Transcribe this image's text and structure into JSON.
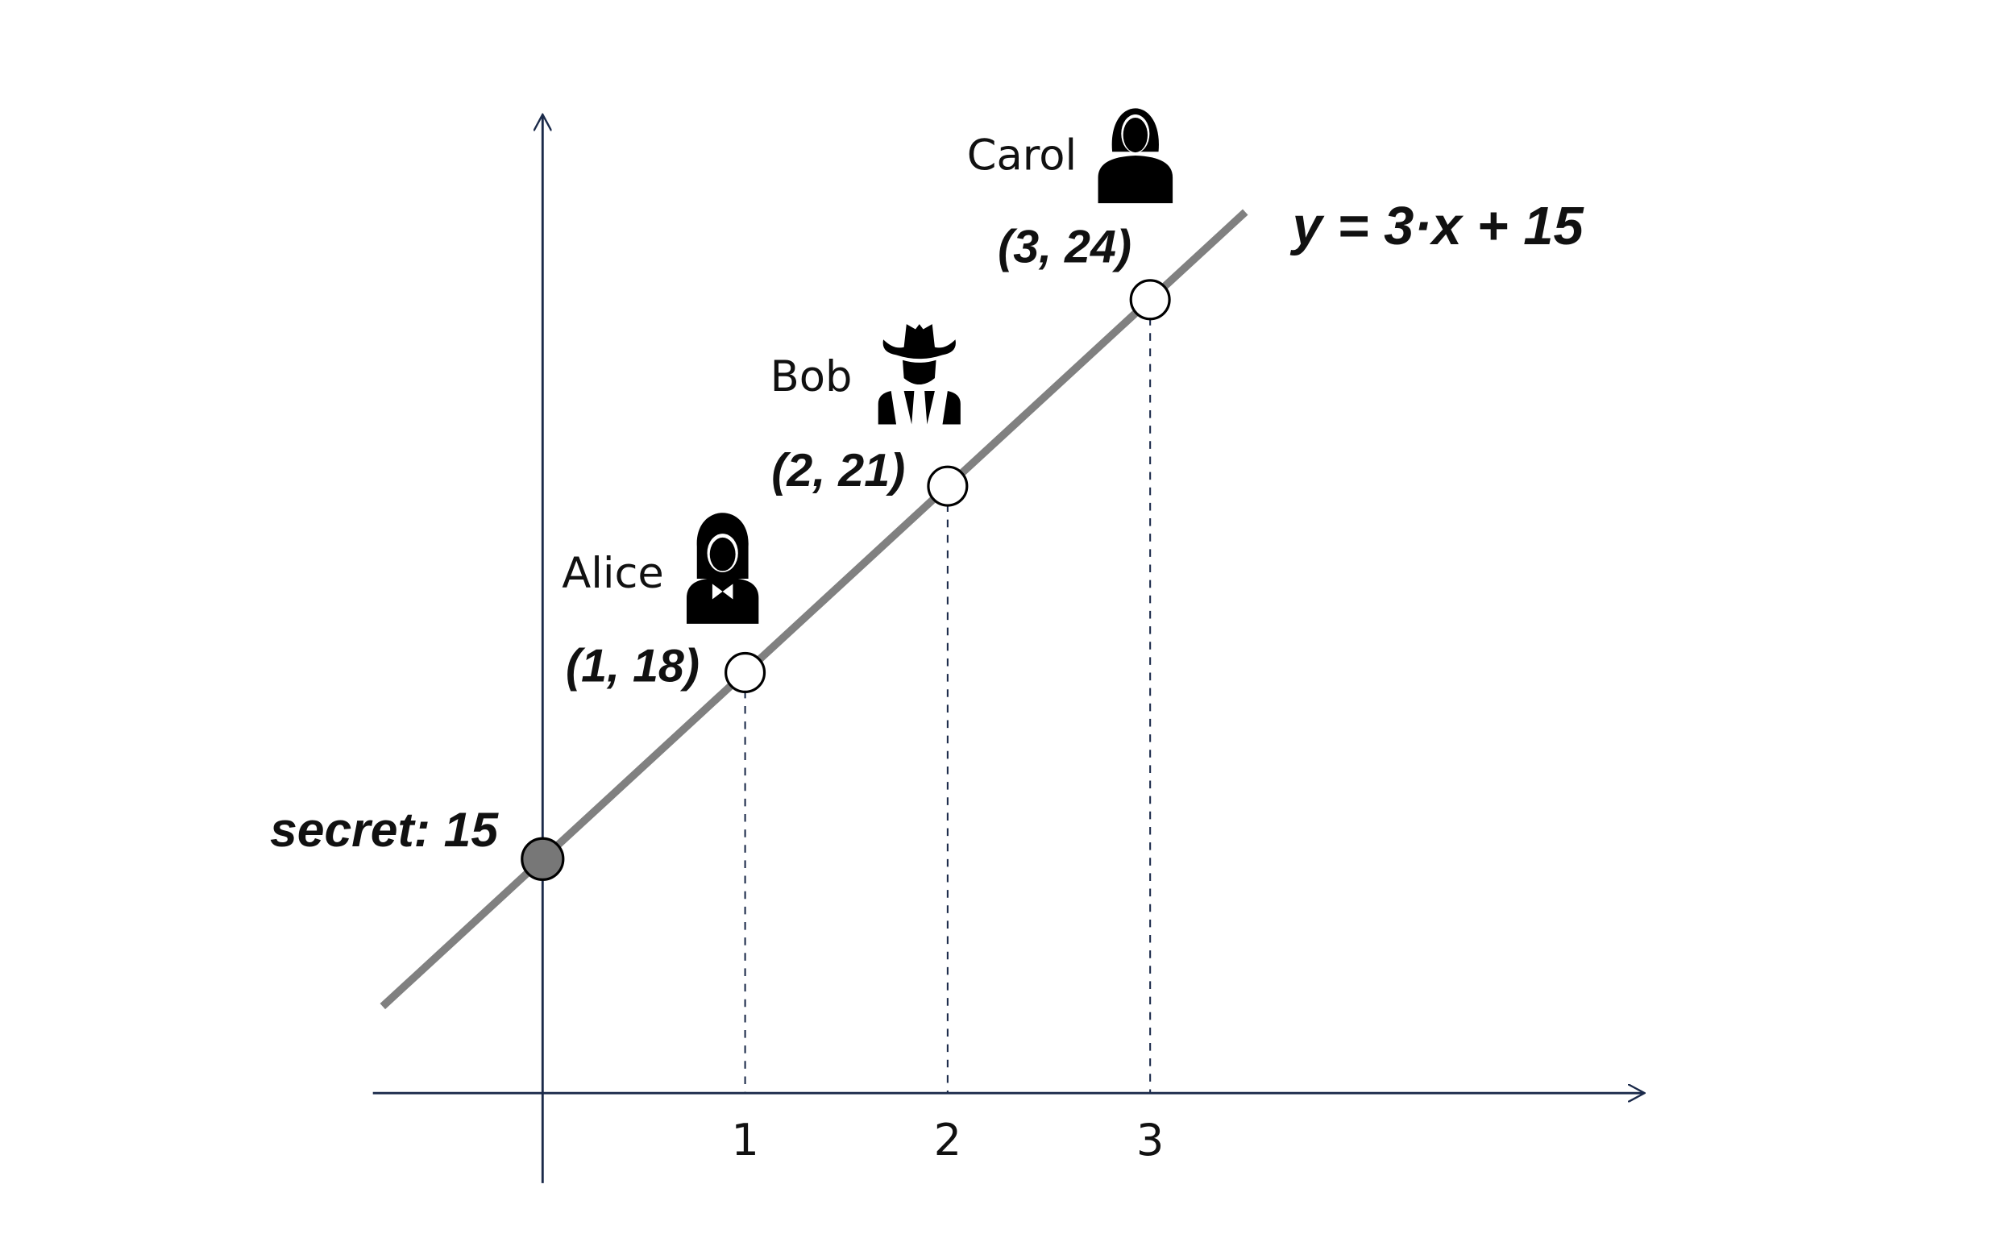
{
  "chart_data": {
    "type": "line",
    "equation": "y = 3·x + 15",
    "slope": 3,
    "intercept": 15,
    "secret_label": "secret: 15",
    "secret": {
      "x": 0,
      "y": 15
    },
    "x_ticks": [
      "1",
      "2",
      "3"
    ],
    "points": [
      {
        "name": "Alice",
        "x": 1,
        "y": 18,
        "label": "(1, 18)",
        "icon": "woman-bowtie-icon"
      },
      {
        "name": "Bob",
        "x": 2,
        "y": 21,
        "label": "(2, 21)",
        "icon": "cowboy-hat-man-icon"
      },
      {
        "name": "Carol",
        "x": 3,
        "y": 24,
        "label": "(3, 24)",
        "icon": "woman-icon"
      }
    ],
    "colors": {
      "line": "#808080",
      "axes": "#1b2a4a",
      "secret_point": "#777777",
      "share_point": "#ffffff"
    }
  }
}
